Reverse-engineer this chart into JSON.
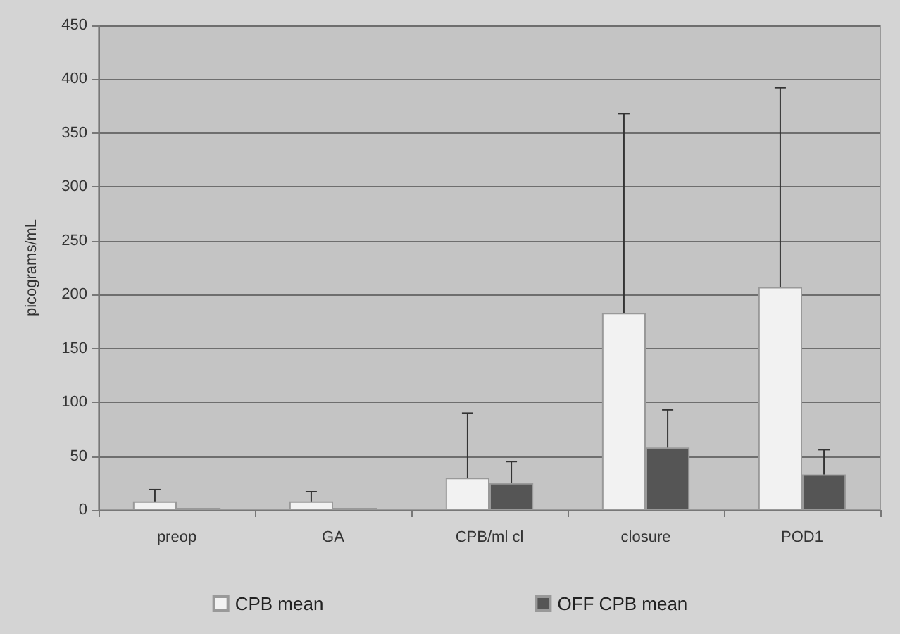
{
  "chart_data": {
    "type": "bar",
    "ylabel": "picograms/mL",
    "categories": [
      "preop",
      "GA",
      "CPB/ml cl",
      "closure",
      "POD1"
    ],
    "series": [
      {
        "name": "CPB mean",
        "color": "#f2f2f2",
        "values": [
          8,
          8,
          30,
          183,
          207
        ],
        "errors": [
          [
            8,
            19
          ],
          [
            8,
            17
          ],
          [
            30,
            90
          ],
          [
            183,
            368
          ],
          [
            207,
            392
          ]
        ]
      },
      {
        "name": "OFF CPB mean",
        "color": "#555555",
        "values": [
          2,
          2,
          25,
          58,
          33
        ],
        "errors": [
          null,
          null,
          [
            25,
            45
          ],
          [
            58,
            93
          ],
          [
            33,
            56
          ]
        ]
      }
    ],
    "ylim": [
      0,
      450
    ],
    "yticks": [
      0,
      50,
      100,
      150,
      200,
      250,
      300,
      350,
      400,
      450
    ],
    "grid": "y",
    "legend": "bottom"
  }
}
